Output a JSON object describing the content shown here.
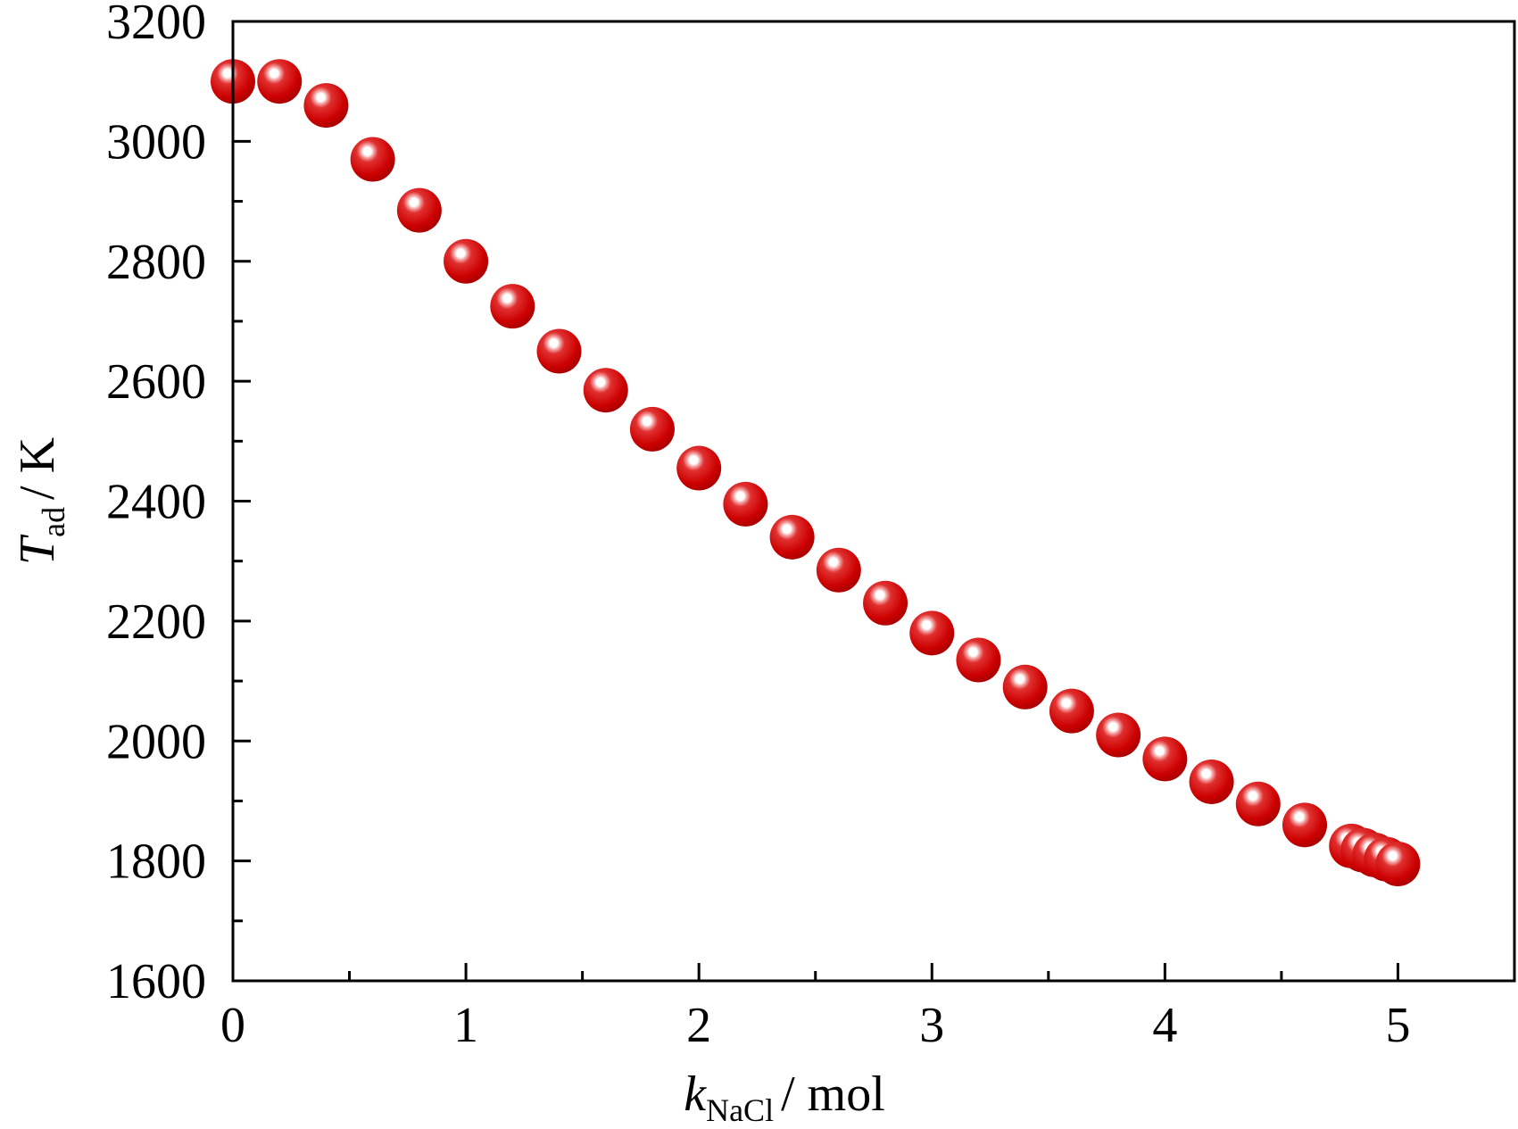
{
  "chart_data": {
    "type": "scatter",
    "title": "",
    "xlabel": {
      "symbol": "k",
      "subscript": "NaCl",
      "unit": "/ mol"
    },
    "ylabel": {
      "symbol": "T",
      "subscript": "ad",
      "unit": "/ K"
    },
    "xlim": [
      0,
      5.5
    ],
    "ylim": [
      1600,
      3200
    ],
    "x_ticks": [
      0,
      1,
      2,
      3,
      4,
      5
    ],
    "x_tick_labels": [
      "0",
      "1",
      "2",
      "3",
      "4",
      "5"
    ],
    "y_ticks": [
      1600,
      1800,
      2000,
      2200,
      2400,
      2600,
      2800,
      3000,
      3200
    ],
    "y_tick_labels": [
      "1600",
      "1800",
      "2000",
      "2200",
      "2400",
      "2600",
      "2800",
      "3000",
      "3200"
    ],
    "grid": false,
    "marker_color": "#cc0000",
    "series": [
      {
        "x": [
          0,
          0.2,
          0.4,
          0.6,
          0.8,
          1.0,
          1.2,
          1.4,
          1.6,
          1.8,
          2.0,
          2.2,
          2.4,
          2.6,
          2.8,
          3.0,
          3.2,
          3.4,
          3.6,
          3.8,
          4.0,
          4.2,
          4.4,
          4.6,
          4.8,
          4.85,
          4.9,
          4.95,
          5.0
        ],
        "y": [
          3100,
          3100,
          3060,
          2970,
          2885,
          2800,
          2725,
          2650,
          2585,
          2520,
          2455,
          2395,
          2340,
          2285,
          2230,
          2180,
          2135,
          2090,
          2050,
          2010,
          1970,
          1932,
          1895,
          1860,
          1825,
          1818,
          1810,
          1803,
          1795
        ]
      }
    ]
  }
}
